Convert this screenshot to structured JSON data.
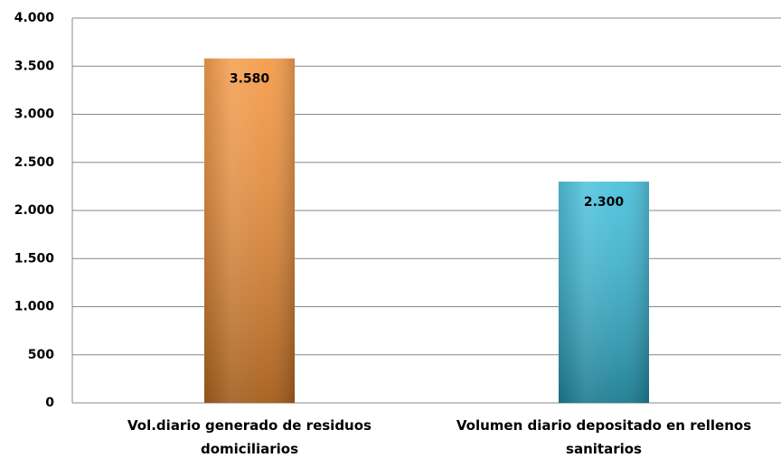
{
  "chart_data": {
    "type": "bar",
    "categories": [
      "Vol.diario generado de residuos domiciliarios",
      "Volumen diario depositado en rellenos sanitarios"
    ],
    "values": [
      3580,
      2300
    ],
    "value_labels": [
      "3.580",
      "2.300"
    ],
    "colors": [
      "#f28a2a",
      "#2bb6d6"
    ],
    "ylim": [
      0,
      4000
    ],
    "yticks": [
      0,
      500,
      {
        "value": 1000,
        "label": "1.000"
      },
      {
        "value": 1500,
        "label": "1.500"
      },
      {
        "value": 2000,
        "label": "2.000"
      },
      {
        "value": 2500,
        "label": "2.500"
      },
      {
        "value": 3000,
        "label": "3.000"
      },
      {
        "value": 3500,
        "label": "3.500"
      },
      {
        "value": 4000,
        "label": "4.000"
      }
    ],
    "grid": true
  }
}
